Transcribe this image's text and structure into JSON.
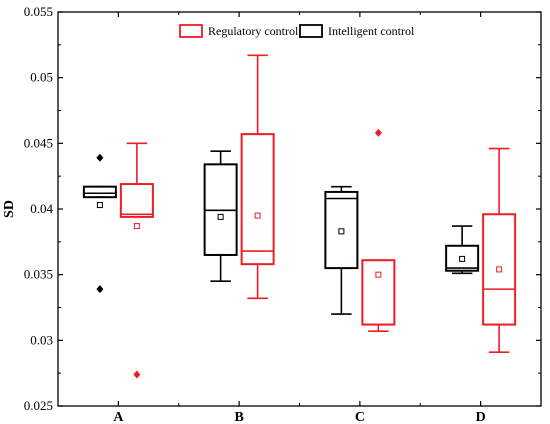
{
  "chart_data": {
    "type": "box",
    "title": "",
    "xlabel": "",
    "ylabel": "SD",
    "ylim": [
      0.025,
      0.055
    ],
    "yticks": [
      0.025,
      0.03,
      0.035,
      0.04,
      0.045,
      0.05,
      0.055
    ],
    "ytick_labels": [
      "0.025",
      "0.03",
      "0.035",
      "0.04",
      "0.045",
      "0.05",
      "0.055"
    ],
    "categories": [
      "A",
      "B",
      "C",
      "D"
    ],
    "grid": false,
    "legend_position": "top-center",
    "series": [
      {
        "name": "Intelligent control",
        "color": "#000000",
        "boxes": [
          {
            "category": "A",
            "whisker_low": 0.0409,
            "q1": 0.0409,
            "median": 0.0412,
            "q3": 0.0417,
            "whisker_high": 0.0417,
            "mean": 0.0403,
            "outliers": [
              0.0339,
              0.0439
            ]
          },
          {
            "category": "B",
            "whisker_low": 0.0345,
            "q1": 0.0365,
            "median": 0.0399,
            "q3": 0.0434,
            "whisker_high": 0.0444,
            "mean": 0.0394,
            "outliers": []
          },
          {
            "category": "C",
            "whisker_low": 0.032,
            "q1": 0.0355,
            "median": 0.0408,
            "q3": 0.0413,
            "whisker_high": 0.0417,
            "mean": 0.0383,
            "outliers": []
          },
          {
            "category": "D",
            "whisker_low": 0.0351,
            "q1": 0.0353,
            "median": 0.0355,
            "q3": 0.0372,
            "whisker_high": 0.0387,
            "mean": 0.0362,
            "outliers": []
          }
        ]
      },
      {
        "name": "Regulatory control",
        "color": "#ee1c25",
        "boxes": [
          {
            "category": "A",
            "whisker_low": 0.0394,
            "q1": 0.0394,
            "median": 0.0396,
            "q3": 0.0419,
            "whisker_high": 0.045,
            "mean": 0.0387,
            "outliers": [
              0.0274
            ]
          },
          {
            "category": "B",
            "whisker_low": 0.0332,
            "q1": 0.0358,
            "median": 0.0368,
            "q3": 0.0457,
            "whisker_high": 0.0517,
            "mean": 0.0395,
            "outliers": []
          },
          {
            "category": "C",
            "whisker_low": 0.0307,
            "q1": 0.0312,
            "median": 0.0312,
            "q3": 0.0361,
            "whisker_high": 0.0361,
            "mean": 0.035,
            "outliers": [
              0.0458
            ]
          },
          {
            "category": "D",
            "whisker_low": 0.0291,
            "q1": 0.0312,
            "median": 0.0339,
            "q3": 0.0396,
            "whisker_high": 0.0446,
            "mean": 0.0354,
            "outliers": []
          }
        ]
      }
    ],
    "legend": [
      {
        "label": "Regulatory control",
        "color": "#ee1c25"
      },
      {
        "label": "Intelligent control",
        "color": "#000000"
      }
    ]
  }
}
